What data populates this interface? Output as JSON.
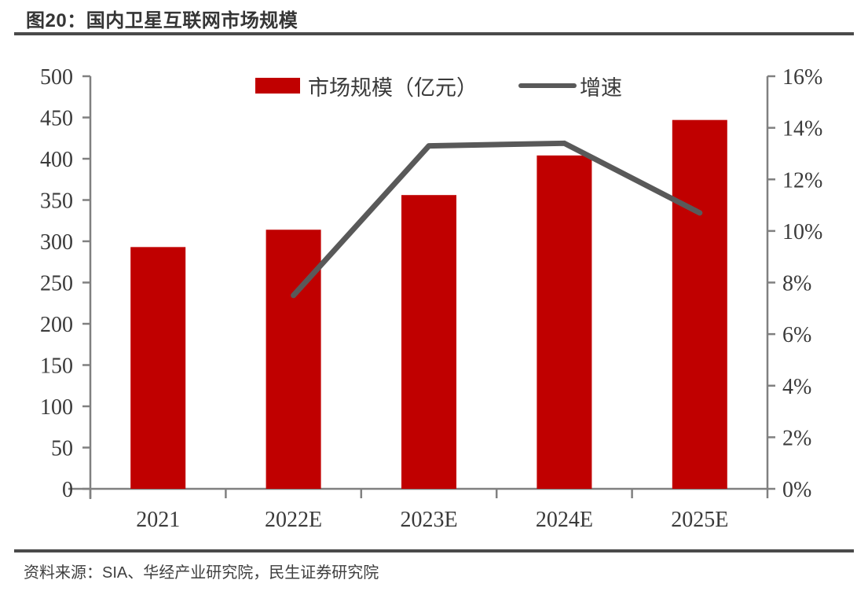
{
  "page": {
    "title": "图20：国内卫星互联网市场规模",
    "source": "资料来源：SIA、华经产业研究院，民生证券研究院"
  },
  "chart_data": {
    "type": "bar",
    "subtype": "combo-bar-line",
    "title": "国内卫星互联网市场规模",
    "categories": [
      "2021",
      "2022E",
      "2023E",
      "2024E",
      "2025E"
    ],
    "series": [
      {
        "name": "市场规模（亿元）",
        "type": "bar",
        "axis": "left",
        "color": "#c00000",
        "values": [
          293,
          314,
          356,
          404,
          447
        ]
      },
      {
        "name": "增速",
        "type": "line",
        "axis": "right",
        "color": "#595959",
        "values": [
          null,
          7.5,
          13.3,
          13.4,
          10.7
        ]
      }
    ],
    "left_axis": {
      "min": 0,
      "max": 500,
      "step": 50,
      "tick_labels": [
        "0",
        "50",
        "100",
        "150",
        "200",
        "250",
        "300",
        "350",
        "400",
        "450",
        "500"
      ]
    },
    "right_axis": {
      "min": 0,
      "max": 16,
      "step": 2,
      "format": "percent",
      "tick_labels": [
        "0%",
        "2%",
        "4%",
        "6%",
        "8%",
        "10%",
        "12%",
        "14%",
        "16%"
      ]
    },
    "legend_position": "top-center",
    "grid": false
  },
  "colors": {
    "bar": "#c00000",
    "line": "#595959",
    "axis": "#808080",
    "text": "#3a3a3a",
    "rule": "#4a4a4a"
  }
}
